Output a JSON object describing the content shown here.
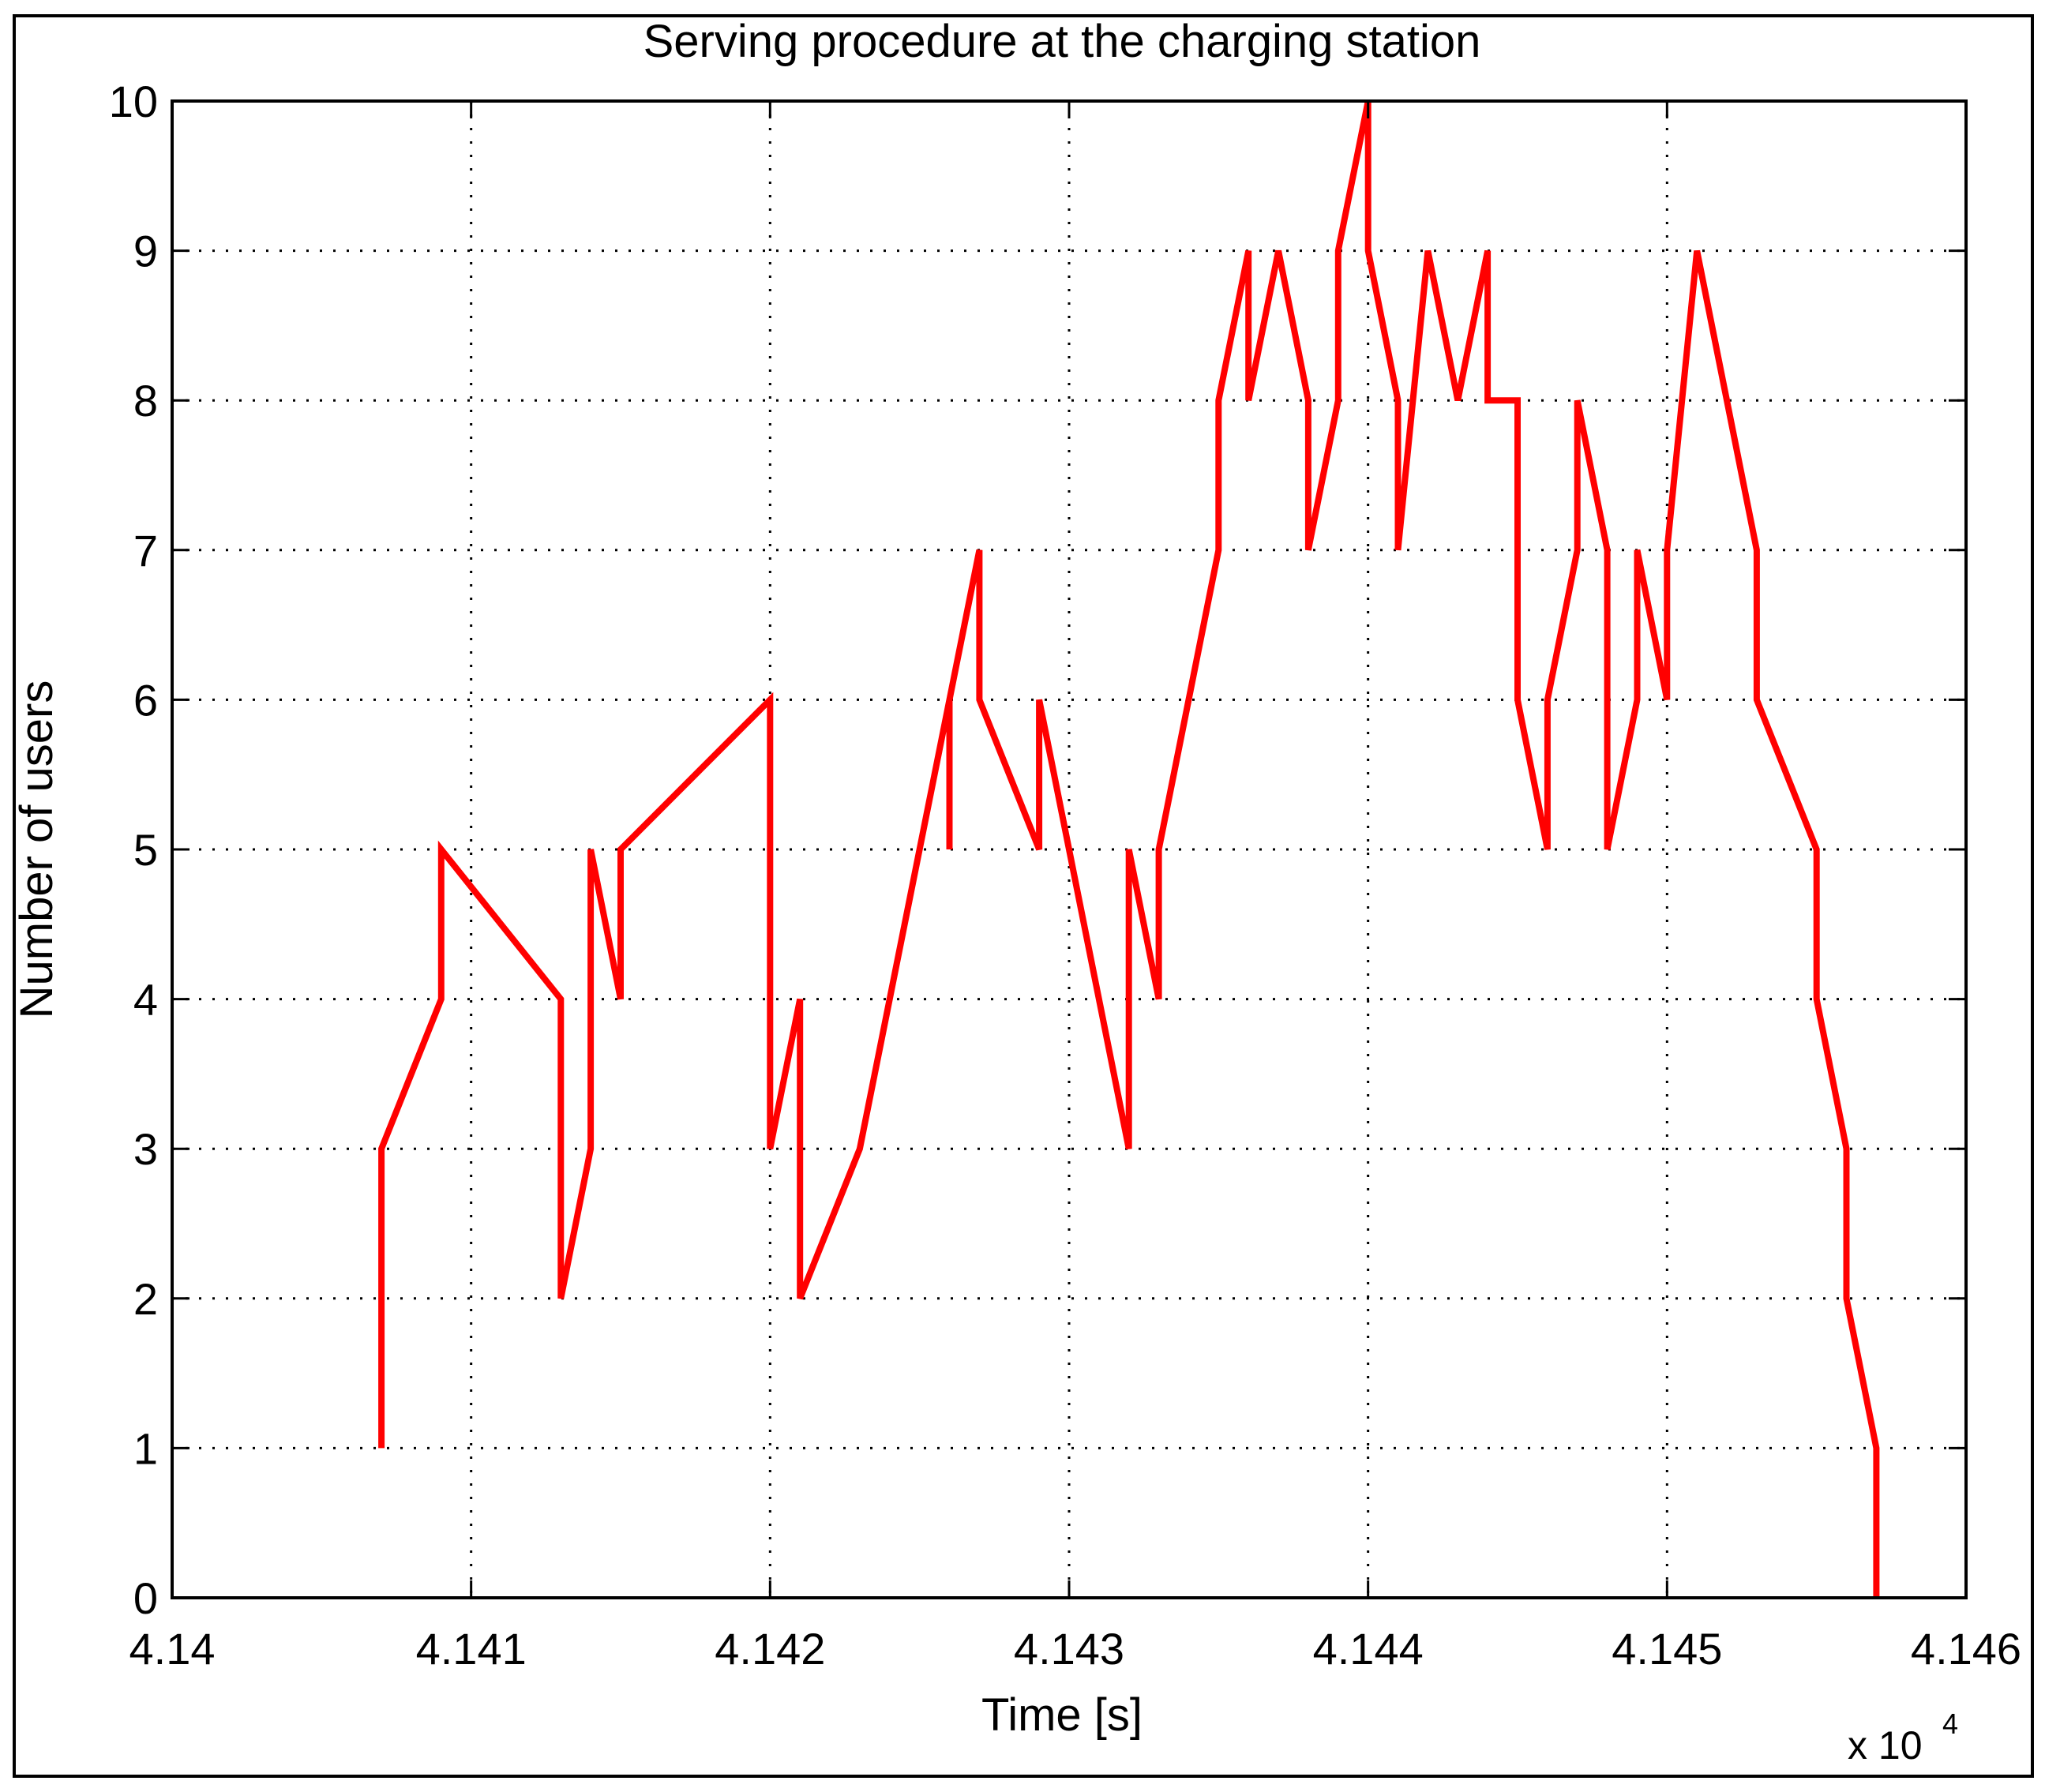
{
  "chart_data": {
    "type": "line",
    "title": "Serving procedure at the charging station",
    "xlabel": "Time [s]",
    "ylabel": "Number of users",
    "x_exponent_label": "x 10",
    "x_exponent_power": "4",
    "xlim": [
      4.14,
      4.146
    ],
    "ylim": [
      0,
      10
    ],
    "x_ticks": [
      4.14,
      4.141,
      4.142,
      4.143,
      4.144,
      4.145,
      4.146
    ],
    "x_tick_labels": [
      "4.14",
      "4.141",
      "4.142",
      "4.143",
      "4.144",
      "4.145",
      "4.146"
    ],
    "y_ticks": [
      0,
      1,
      2,
      3,
      4,
      5,
      6,
      7,
      8,
      9,
      10
    ],
    "y_tick_labels": [
      "0",
      "1",
      "2",
      "3",
      "4",
      "5",
      "6",
      "7",
      "8",
      "9",
      "10"
    ],
    "grid": true,
    "line_color": "#ff0000",
    "series": [
      {
        "x": [
          4.1407,
          4.1407,
          4.1409,
          4.1409,
          4.1413,
          4.1413,
          4.1414,
          4.1414,
          4.1415,
          4.1415,
          4.142,
          4.142,
          4.1421,
          4.1421,
          4.1423,
          4.1426,
          4.1426,
          4.1426,
          4.1427,
          4.1427,
          4.1429,
          4.1429,
          4.1432,
          4.1432,
          4.1433,
          4.1433,
          4.1435,
          4.1435,
          4.1436,
          4.1436,
          4.1437,
          4.1438,
          4.1438,
          4.1439,
          4.1439,
          4.144,
          4.144,
          4.1441,
          4.1441,
          4.1442,
          4.1443,
          4.1444,
          4.1444,
          4.1445,
          4.1445,
          4.1446,
          4.1446,
          4.1447,
          4.1447,
          4.1448,
          4.1448,
          4.1449,
          4.1449,
          4.145,
          4.145,
          4.1451,
          4.1453,
          4.1453,
          4.1455,
          4.1455,
          4.1456,
          4.1456,
          4.1457,
          4.1457
        ],
        "y": [
          1,
          3,
          4,
          5,
          4,
          2,
          3,
          5,
          4,
          5,
          6,
          3,
          4,
          2,
          3,
          6,
          5,
          6,
          7,
          6,
          5,
          6,
          3,
          5,
          4,
          5,
          7,
          8,
          9,
          8,
          9,
          8,
          7,
          8,
          9,
          10,
          9,
          8,
          7,
          9,
          8,
          9,
          8,
          8,
          6,
          5,
          6,
          7,
          8,
          7,
          5,
          6,
          7,
          6,
          7,
          9,
          7,
          6,
          5,
          4,
          3,
          2,
          1,
          0
        ]
      }
    ]
  }
}
